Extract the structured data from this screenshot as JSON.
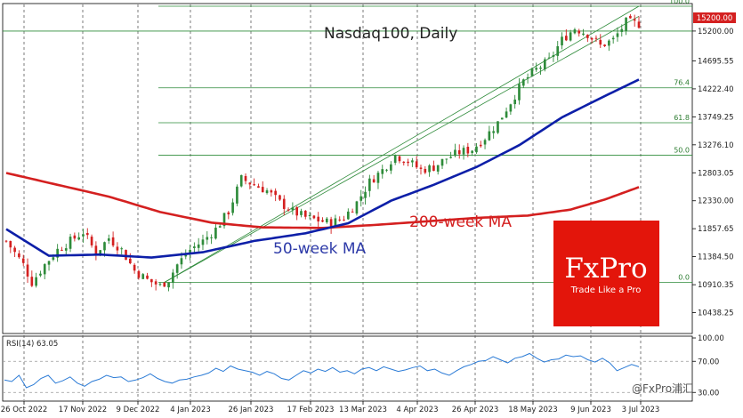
{
  "chart_data": [
    {
      "type": "candlestick",
      "title": "Nasdaq100, Daily",
      "ylim": [
        10100,
        15650
      ],
      "y_ticks": [
        "15200.00",
        "14695.55",
        "14222.40",
        "13749.25",
        "13276.10",
        "12803.05",
        "12330.00",
        "11857.65",
        "11384.50",
        "10910.35",
        "10438.25"
      ],
      "x_ticks": [
        "26 Oct 2022",
        "17 Nov 2022",
        "9 Dec 2022",
        "4 Jan 2023",
        "26 Jan 2023",
        "17 Feb 2023",
        "13 Mar 2023",
        "4 Apr 2023",
        "26 Apr 2023",
        "18 May 2023",
        "9 Jun 2023",
        "3 Jul 2023"
      ],
      "price_label": "15200.00",
      "close_path": [
        [
          0,
          11650
        ],
        [
          4,
          11250
        ],
        [
          6,
          10950
        ],
        [
          9,
          11250
        ],
        [
          12,
          11500
        ],
        [
          15,
          11650
        ],
        [
          18,
          11800
        ],
        [
          21,
          11450
        ],
        [
          24,
          11700
        ],
        [
          27,
          11500
        ],
        [
          30,
          11150
        ],
        [
          33,
          10990
        ],
        [
          36,
          10890
        ],
        [
          38,
          11000
        ],
        [
          40,
          11250
        ],
        [
          43,
          11500
        ],
        [
          46,
          11650
        ],
        [
          49,
          11850
        ],
        [
          52,
          12150
        ],
        [
          55,
          12700
        ],
        [
          58,
          12600
        ],
        [
          61,
          12500
        ],
        [
          64,
          12300
        ],
        [
          67,
          12150
        ],
        [
          70,
          12050
        ],
        [
          73,
          12000
        ],
        [
          76,
          11950
        ],
        [
          79,
          12050
        ],
        [
          82,
          12300
        ],
        [
          85,
          12650
        ],
        [
          88,
          12850
        ],
        [
          91,
          13100
        ],
        [
          94,
          13000
        ],
        [
          97,
          12850
        ],
        [
          100,
          12900
        ],
        [
          103,
          13050
        ],
        [
          106,
          13150
        ],
        [
          109,
          13200
        ],
        [
          112,
          13400
        ],
        [
          115,
          13650
        ],
        [
          118,
          14000
        ],
        [
          121,
          14350
        ],
        [
          124,
          14550
        ],
        [
          127,
          14700
        ],
        [
          130,
          15050
        ],
        [
          133,
          15250
        ],
        [
          136,
          15150
        ],
        [
          139,
          14950
        ],
        [
          142,
          15050
        ],
        [
          145,
          15350
        ],
        [
          148,
          15320
        ]
      ],
      "ma_50_week": {
        "label": "50-week MA",
        "color": "#0d1fa8",
        "points": [
          [
            0,
            11850
          ],
          [
            10,
            11400
          ],
          [
            22,
            11420
          ],
          [
            34,
            11370
          ],
          [
            46,
            11460
          ],
          [
            58,
            11650
          ],
          [
            70,
            11780
          ],
          [
            80,
            11950
          ],
          [
            90,
            12330
          ],
          [
            100,
            12600
          ],
          [
            110,
            12900
          ],
          [
            120,
            13270
          ],
          [
            130,
            13740
          ],
          [
            140,
            14100
          ],
          [
            148,
            14380
          ]
        ]
      },
      "ma_200_week": {
        "label": "200-week MA",
        "color": "#d42020",
        "points": [
          [
            0,
            12800
          ],
          [
            12,
            12600
          ],
          [
            24,
            12400
          ],
          [
            36,
            12140
          ],
          [
            48,
            11960
          ],
          [
            60,
            11880
          ],
          [
            74,
            11870
          ],
          [
            86,
            11920
          ],
          [
            98,
            11980
          ],
          [
            110,
            12040
          ],
          [
            122,
            12080
          ],
          [
            132,
            12180
          ],
          [
            140,
            12350
          ],
          [
            148,
            12560
          ]
        ]
      },
      "fibonacci": {
        "levels": [
          {
            "label": "100.0",
            "value": 15620
          },
          {
            "label": "76.4",
            "value": 14240
          },
          {
            "label": "61.8",
            "value": 13650
          },
          {
            "label": "50.0",
            "value": 13100
          },
          {
            "label": "0.0",
            "value": 10950
          }
        ]
      }
    },
    {
      "type": "line",
      "title": "RSI(14) 63.05",
      "ylim": [
        20,
        100
      ],
      "y_ticks": [
        "100.00",
        "70.00",
        "30.00"
      ],
      "levels": [
        70,
        30
      ],
      "color": "#2b7bd6",
      "values": [
        46,
        44,
        52,
        36,
        40,
        48,
        52,
        42,
        45,
        50,
        42,
        38,
        44,
        47,
        52,
        49,
        50,
        44,
        46,
        49,
        54,
        48,
        44,
        42,
        46,
        47,
        50,
        52,
        55,
        61,
        57,
        64,
        60,
        58,
        56,
        52,
        57,
        54,
        48,
        46,
        52,
        58,
        55,
        60,
        57,
        62,
        56,
        58,
        54,
        60,
        62,
        58,
        63,
        60,
        57,
        59,
        62,
        64,
        58,
        60,
        55,
        52,
        58,
        63,
        66,
        70,
        71,
        76,
        72,
        68,
        74,
        76,
        80,
        74,
        69,
        72,
        73,
        78,
        76,
        77,
        72,
        69,
        74,
        68,
        58,
        62,
        66,
        63
      ]
    }
  ],
  "watermark": {
    "brand": "FxPro",
    "tagline": "Trade Like a Pro",
    "color": "#e3150b",
    "footer": "@FxPro浦汇"
  }
}
